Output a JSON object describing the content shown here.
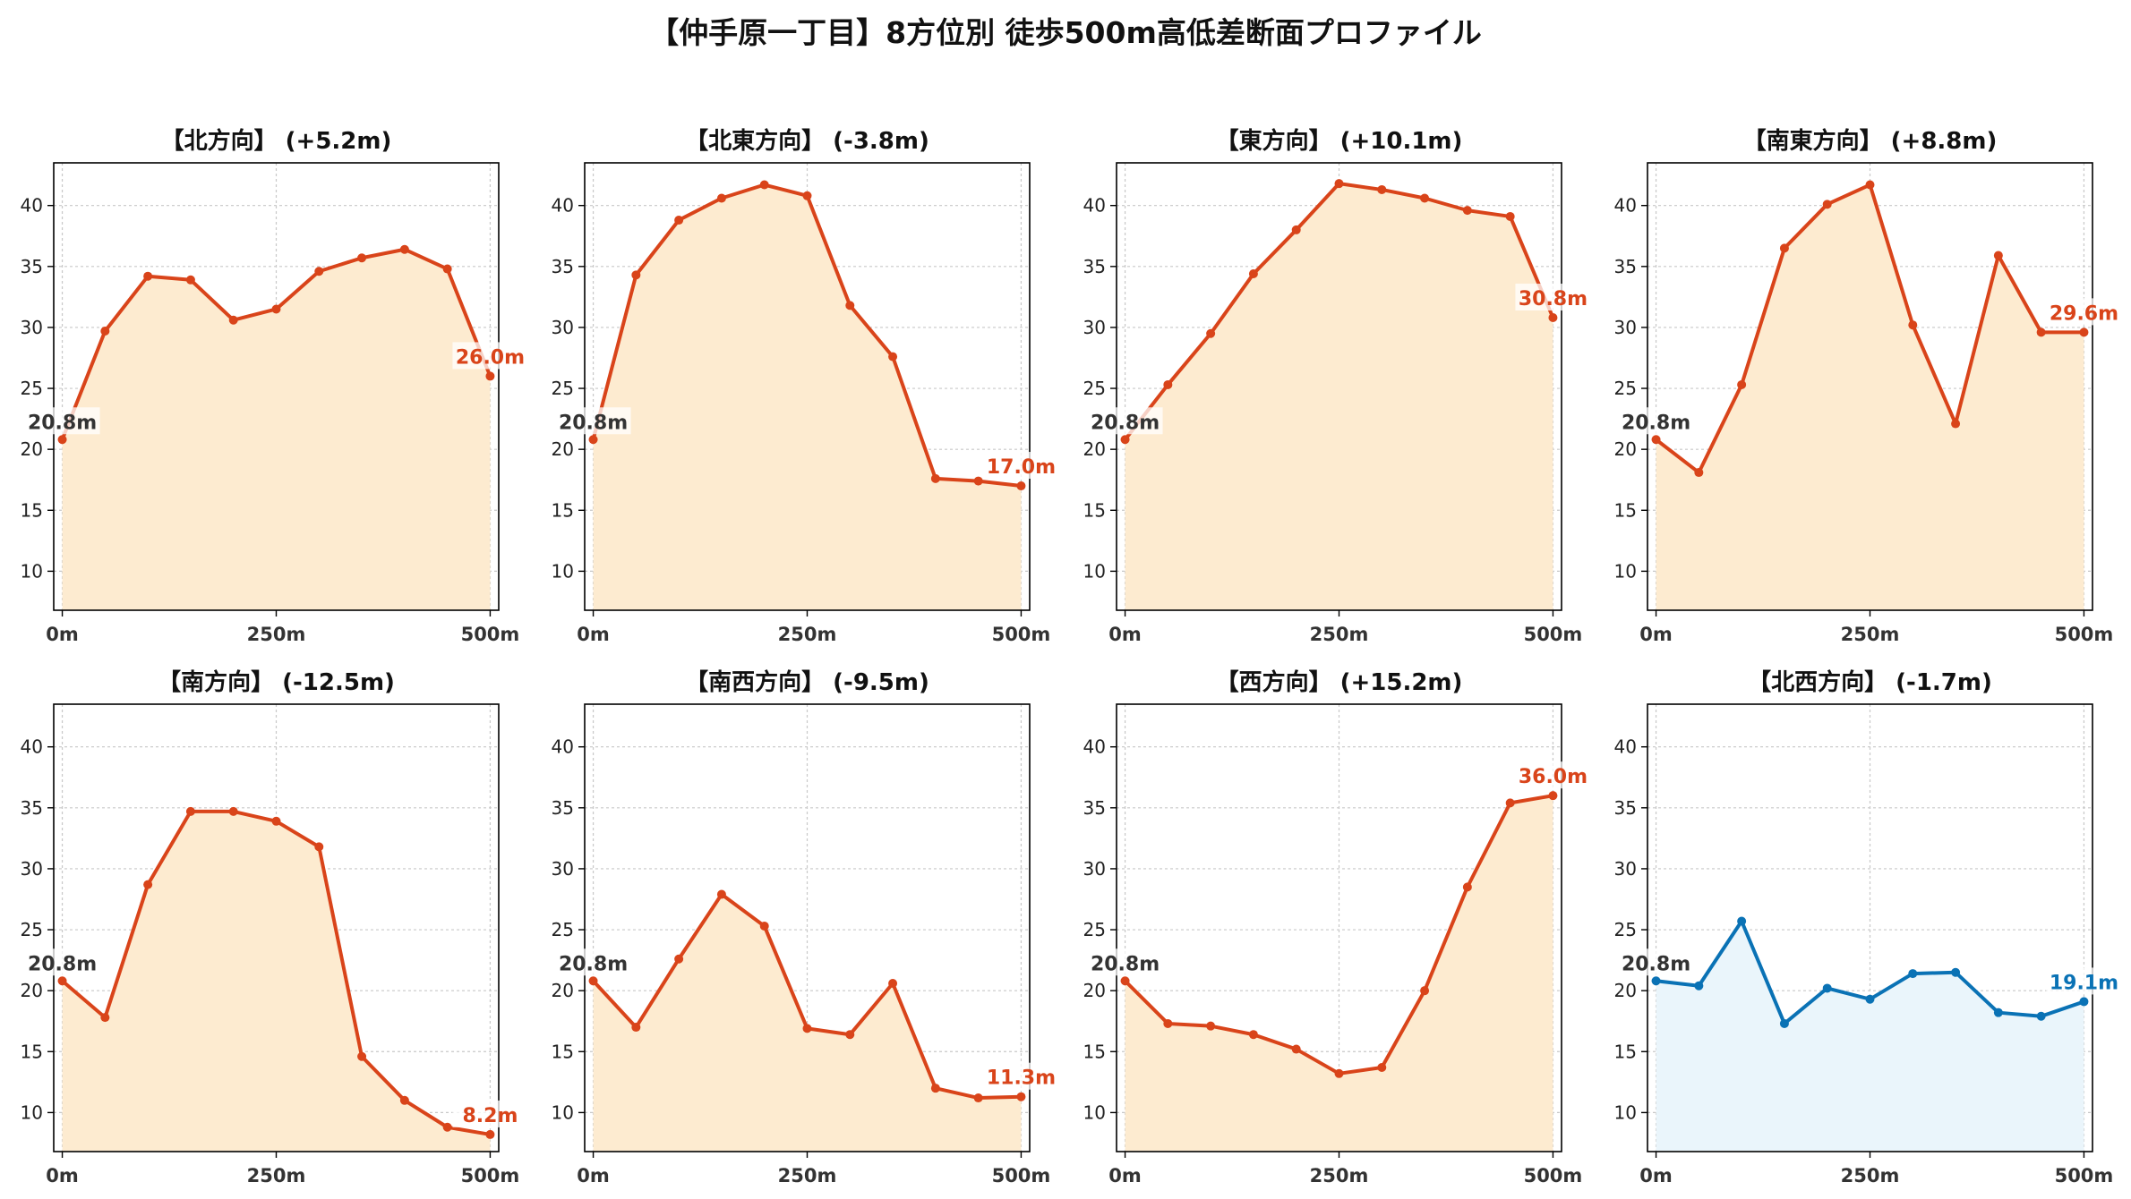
{
  "title": "【仲手原一丁目】8方位別 徒歩500m高低差断面プロファイル",
  "colors": {
    "up_line": "#d9441a",
    "up_fill": "#fdebd0",
    "down_line": "#0a72b5",
    "down_fill": "#eaf5fb",
    "start_label": "#333333",
    "grid": "#c8c8c8"
  },
  "chart_data": [
    {
      "type": "area",
      "title": "【北方向】 (+5.2m)",
      "x": [
        0,
        50,
        100,
        150,
        200,
        250,
        300,
        350,
        400,
        450,
        500
      ],
      "values": [
        20.8,
        29.7,
        34.2,
        33.9,
        30.6,
        31.5,
        34.6,
        35.7,
        36.4,
        34.8,
        26.0
      ],
      "start_label": "20.8m",
      "end_label": "26.0m",
      "color_key": "up",
      "xticks": [
        0,
        250,
        500
      ],
      "xtick_labels": [
        "0m",
        "250m",
        "500m"
      ],
      "yticks": [
        10,
        15,
        20,
        25,
        30,
        35,
        40
      ],
      "xlim": [
        -10,
        510
      ],
      "ylim": [
        6.8,
        43.5
      ],
      "grid": true
    },
    {
      "type": "area",
      "title": "【北東方向】 (-3.8m)",
      "x": [
        0,
        50,
        100,
        150,
        200,
        250,
        300,
        350,
        400,
        450,
        500
      ],
      "values": [
        20.8,
        34.3,
        38.8,
        40.6,
        41.7,
        40.8,
        31.8,
        27.6,
        17.6,
        17.4,
        17.0
      ],
      "start_label": "20.8m",
      "end_label": "17.0m",
      "color_key": "up",
      "xticks": [
        0,
        250,
        500
      ],
      "xtick_labels": [
        "0m",
        "250m",
        "500m"
      ],
      "yticks": [
        10,
        15,
        20,
        25,
        30,
        35,
        40
      ],
      "xlim": [
        -10,
        510
      ],
      "ylim": [
        6.8,
        43.5
      ],
      "grid": true
    },
    {
      "type": "area",
      "title": "【東方向】 (+10.1m)",
      "x": [
        0,
        50,
        100,
        150,
        200,
        250,
        300,
        350,
        400,
        450,
        500
      ],
      "values": [
        20.8,
        25.3,
        29.5,
        34.4,
        38.0,
        41.8,
        41.3,
        40.6,
        39.6,
        39.1,
        30.8
      ],
      "start_label": "20.8m",
      "end_label": "30.8m",
      "color_key": "up",
      "xticks": [
        0,
        250,
        500
      ],
      "xtick_labels": [
        "0m",
        "250m",
        "500m"
      ],
      "yticks": [
        10,
        15,
        20,
        25,
        30,
        35,
        40
      ],
      "xlim": [
        -10,
        510
      ],
      "ylim": [
        6.8,
        43.5
      ],
      "grid": true
    },
    {
      "type": "area",
      "title": "【南東方向】 (+8.8m)",
      "x": [
        0,
        50,
        100,
        150,
        200,
        250,
        300,
        350,
        400,
        450,
        500
      ],
      "values": [
        20.8,
        18.1,
        25.3,
        36.5,
        40.1,
        41.7,
        30.2,
        22.1,
        35.9,
        29.6,
        29.6
      ],
      "start_label": "20.8m",
      "end_label": "29.6m",
      "color_key": "up",
      "xticks": [
        0,
        250,
        500
      ],
      "xtick_labels": [
        "0m",
        "250m",
        "500m"
      ],
      "yticks": [
        10,
        15,
        20,
        25,
        30,
        35,
        40
      ],
      "xlim": [
        -10,
        510
      ],
      "ylim": [
        6.8,
        43.5
      ],
      "grid": true
    },
    {
      "type": "area",
      "title": "【南方向】 (-12.5m)",
      "x": [
        0,
        50,
        100,
        150,
        200,
        250,
        300,
        350,
        400,
        450,
        500
      ],
      "values": [
        20.8,
        17.8,
        28.7,
        34.7,
        34.7,
        33.9,
        31.8,
        14.6,
        11.0,
        8.8,
        8.2
      ],
      "start_label": "20.8m",
      "end_label": "8.2m",
      "color_key": "up",
      "xticks": [
        0,
        250,
        500
      ],
      "xtick_labels": [
        "0m",
        "250m",
        "500m"
      ],
      "yticks": [
        10,
        15,
        20,
        25,
        30,
        35,
        40
      ],
      "xlim": [
        -10,
        510
      ],
      "ylim": [
        6.8,
        43.5
      ],
      "grid": true
    },
    {
      "type": "area",
      "title": "【南西方向】 (-9.5m)",
      "x": [
        0,
        50,
        100,
        150,
        200,
        250,
        300,
        350,
        400,
        450,
        500
      ],
      "values": [
        20.8,
        17.0,
        22.6,
        27.9,
        25.3,
        16.9,
        16.4,
        20.6,
        12.0,
        11.2,
        11.3
      ],
      "start_label": "20.8m",
      "end_label": "11.3m",
      "color_key": "up",
      "xticks": [
        0,
        250,
        500
      ],
      "xtick_labels": [
        "0m",
        "250m",
        "500m"
      ],
      "yticks": [
        10,
        15,
        20,
        25,
        30,
        35,
        40
      ],
      "xlim": [
        -10,
        510
      ],
      "ylim": [
        6.8,
        43.5
      ],
      "grid": true
    },
    {
      "type": "area",
      "title": "【西方向】 (+15.2m)",
      "x": [
        0,
        50,
        100,
        150,
        200,
        250,
        300,
        350,
        400,
        450,
        500
      ],
      "values": [
        20.8,
        17.3,
        17.1,
        16.4,
        15.2,
        13.2,
        13.7,
        20.0,
        28.5,
        35.4,
        36.0
      ],
      "start_label": "20.8m",
      "end_label": "36.0m",
      "color_key": "up",
      "xticks": [
        0,
        250,
        500
      ],
      "xtick_labels": [
        "0m",
        "250m",
        "500m"
      ],
      "yticks": [
        10,
        15,
        20,
        25,
        30,
        35,
        40
      ],
      "xlim": [
        -10,
        510
      ],
      "ylim": [
        6.8,
        43.5
      ],
      "grid": true
    },
    {
      "type": "area",
      "title": "【北西方向】 (-1.7m)",
      "x": [
        0,
        50,
        100,
        150,
        200,
        250,
        300,
        350,
        400,
        450,
        500
      ],
      "values": [
        20.8,
        20.4,
        25.7,
        17.3,
        20.2,
        19.3,
        21.4,
        21.5,
        18.2,
        17.9,
        19.1
      ],
      "start_label": "20.8m",
      "end_label": "19.1m",
      "color_key": "down",
      "xticks": [
        0,
        250,
        500
      ],
      "xtick_labels": [
        "0m",
        "250m",
        "500m"
      ],
      "yticks": [
        10,
        15,
        20,
        25,
        30,
        35,
        40
      ],
      "xlim": [
        -10,
        510
      ],
      "ylim": [
        6.8,
        43.5
      ],
      "grid": true
    }
  ]
}
